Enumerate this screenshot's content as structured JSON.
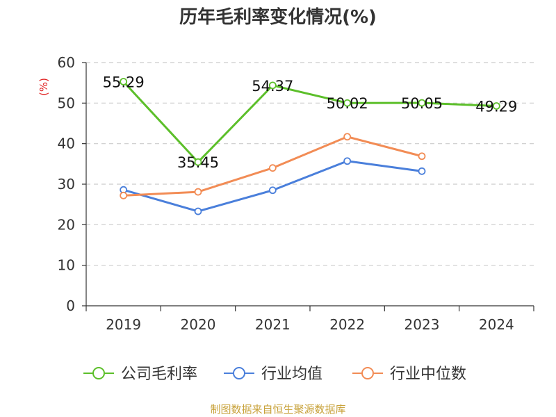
{
  "chart_data": {
    "type": "line",
    "title": "历年毛利率变化情况(%)",
    "ylabel": "(%)",
    "xlabel": "",
    "categories": [
      "2019",
      "2020",
      "2021",
      "2022",
      "2023",
      "2024"
    ],
    "ylim": [
      0,
      60
    ],
    "yticks": [
      0,
      10,
      20,
      30,
      40,
      50,
      60
    ],
    "grid": true,
    "legend_position": "bottom",
    "series": [
      {
        "name": "公司毛利率",
        "color": "#5cbf2a",
        "values": [
          55.29,
          35.45,
          54.37,
          50.02,
          50.05,
          49.29
        ],
        "show_labels": true
      },
      {
        "name": "行业均值",
        "color": "#4a7fdb",
        "values": [
          28.6,
          23.3,
          28.5,
          35.7,
          33.2,
          null
        ],
        "show_labels": false
      },
      {
        "name": "行业中位数",
        "color": "#f28c55",
        "values": [
          27.2,
          28.1,
          34.0,
          41.7,
          36.9,
          null
        ],
        "show_labels": false
      }
    ]
  },
  "footer": {
    "source": "制图数据来自恒生聚源数据库"
  },
  "colors": {
    "axis_line": "#333333",
    "grid_line": "#cccccc",
    "ylabel": "#e02020",
    "footer": "#c8a23a"
  }
}
